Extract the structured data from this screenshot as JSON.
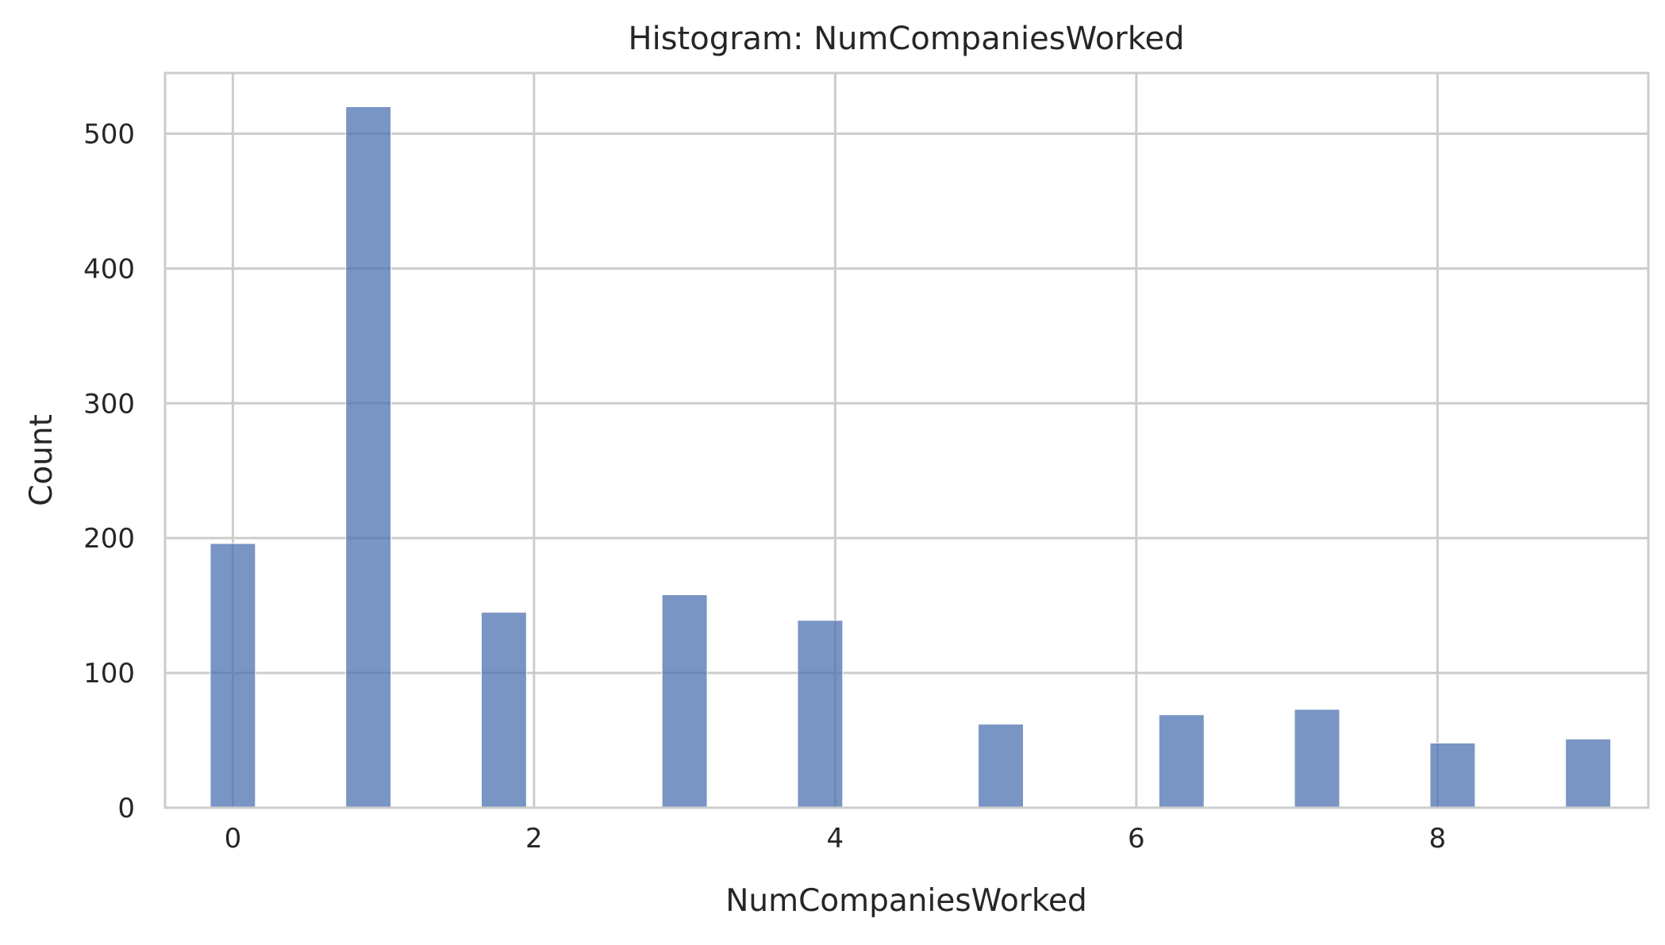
{
  "chart_data": {
    "type": "bar",
    "title": "Histogram: NumCompaniesWorked",
    "xlabel": "NumCompaniesWorked",
    "ylabel": "Count",
    "xlim": [
      -0.45,
      9.4
    ],
    "ylim": [
      0,
      545
    ],
    "xticks": [
      "0",
      "2",
      "4",
      "6",
      "8"
    ],
    "yticks": [
      "0",
      "100",
      "200",
      "300",
      "400",
      "500"
    ],
    "bin_width": 0.3,
    "grid": true,
    "bars": [
      {
        "x": 0,
        "value": 196
      },
      {
        "x": 0.9,
        "value": 520
      },
      {
        "x": 1.8,
        "value": 145
      },
      {
        "x": 3.0,
        "value": 158
      },
      {
        "x": 3.9,
        "value": 139
      },
      {
        "x": 5.1,
        "value": 62
      },
      {
        "x": 6.3,
        "value": 69
      },
      {
        "x": 7.2,
        "value": 73
      },
      {
        "x": 8.1,
        "value": 48
      },
      {
        "x": 9.0,
        "value": 51
      }
    ],
    "colors": {
      "bar": "#4c72b0",
      "grid": "#cccccc",
      "spine": "#cccccc",
      "text": "#262626"
    }
  }
}
